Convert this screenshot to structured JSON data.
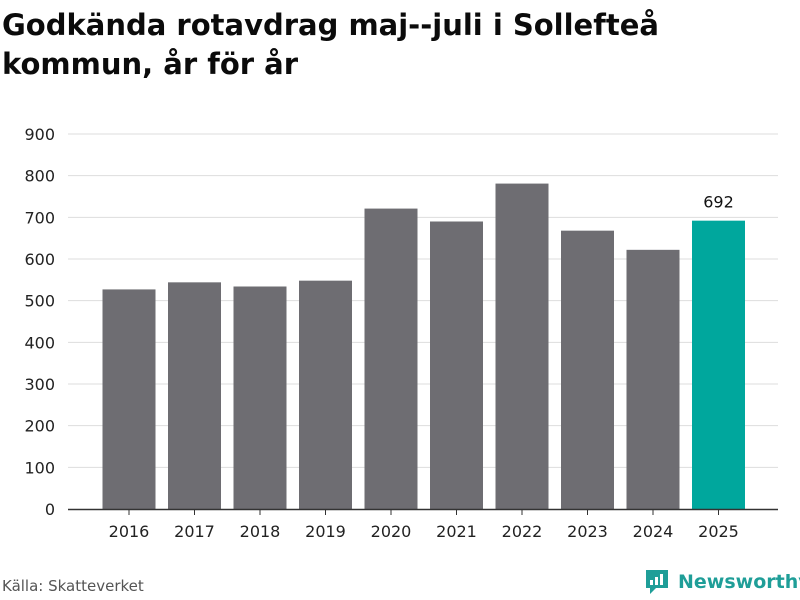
{
  "title": "Godkända rotavdrag maj--juli i Sollefteå kommun, år för år",
  "source": "Källa: Skatteverket",
  "brand": "Newsworthy",
  "colors": {
    "bar": "#6e6d72",
    "highlight": "#00a79d",
    "grid": "#dddddd",
    "axis": "#333333",
    "brand": "#1f9e98"
  },
  "chart_data": {
    "type": "bar",
    "categories": [
      "2016",
      "2017",
      "2018",
      "2019",
      "2020",
      "2021",
      "2022",
      "2023",
      "2024",
      "2025"
    ],
    "values": [
      527,
      544,
      534,
      548,
      721,
      690,
      781,
      668,
      622,
      692
    ],
    "highlight_index": 9,
    "data_labels": [
      {
        "index": 9,
        "text": "692"
      }
    ],
    "yticks": [
      0,
      100,
      200,
      300,
      400,
      500,
      600,
      700,
      800,
      900
    ],
    "ylim": [
      0,
      900
    ],
    "grid": true,
    "legend": false
  }
}
